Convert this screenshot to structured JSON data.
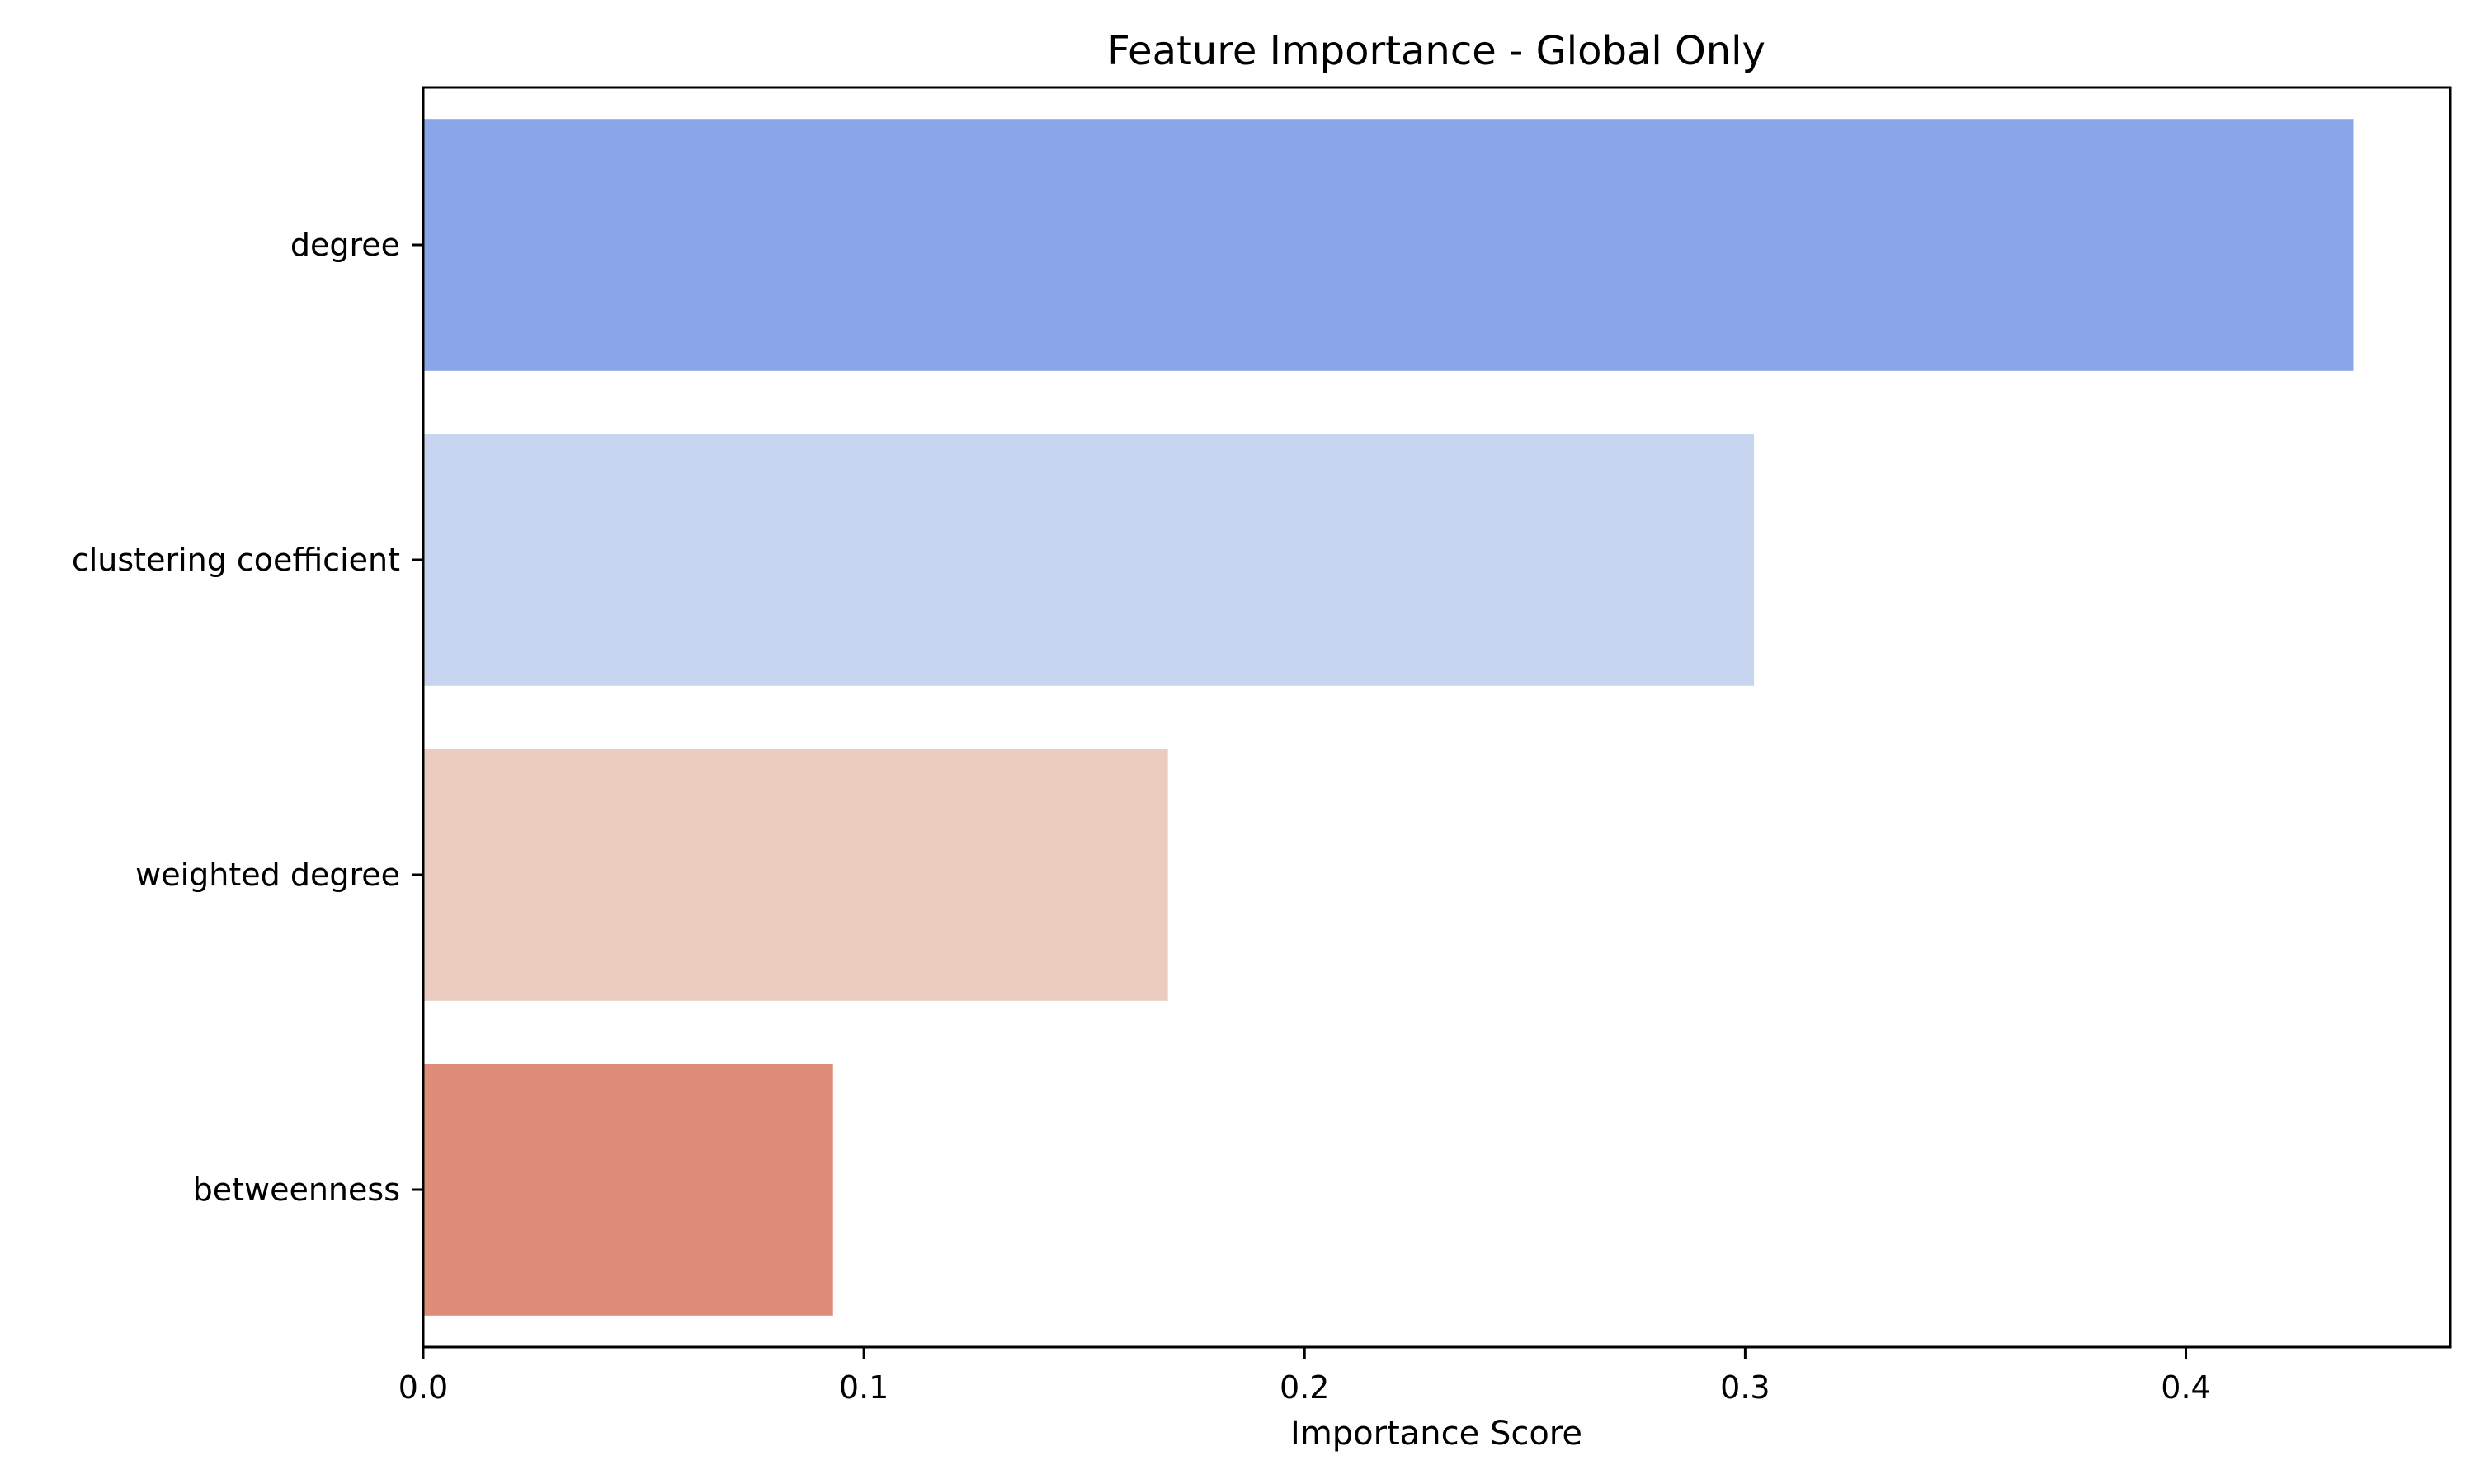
{
  "chart_data": {
    "type": "bar",
    "orientation": "horizontal",
    "title": "Feature Importance - Global Only",
    "xlabel": "Importance Score",
    "ylabel": "",
    "categories": [
      "degree",
      "clustering coefficient",
      "weighted degree",
      "betweenness"
    ],
    "values": [
      0.438,
      0.302,
      0.169,
      0.093
    ],
    "colors": [
      "#8aa6e8",
      "#c7d5f0",
      "#eacdbf",
      "#dd8d78"
    ],
    "xlim": [
      0.0,
      0.46
    ],
    "xticks": [
      0.0,
      0.1,
      0.2,
      0.3,
      0.4
    ],
    "xtick_labels": [
      "0.0",
      "0.1",
      "0.2",
      "0.3",
      "0.4"
    ],
    "grid": false,
    "legend": "none"
  }
}
